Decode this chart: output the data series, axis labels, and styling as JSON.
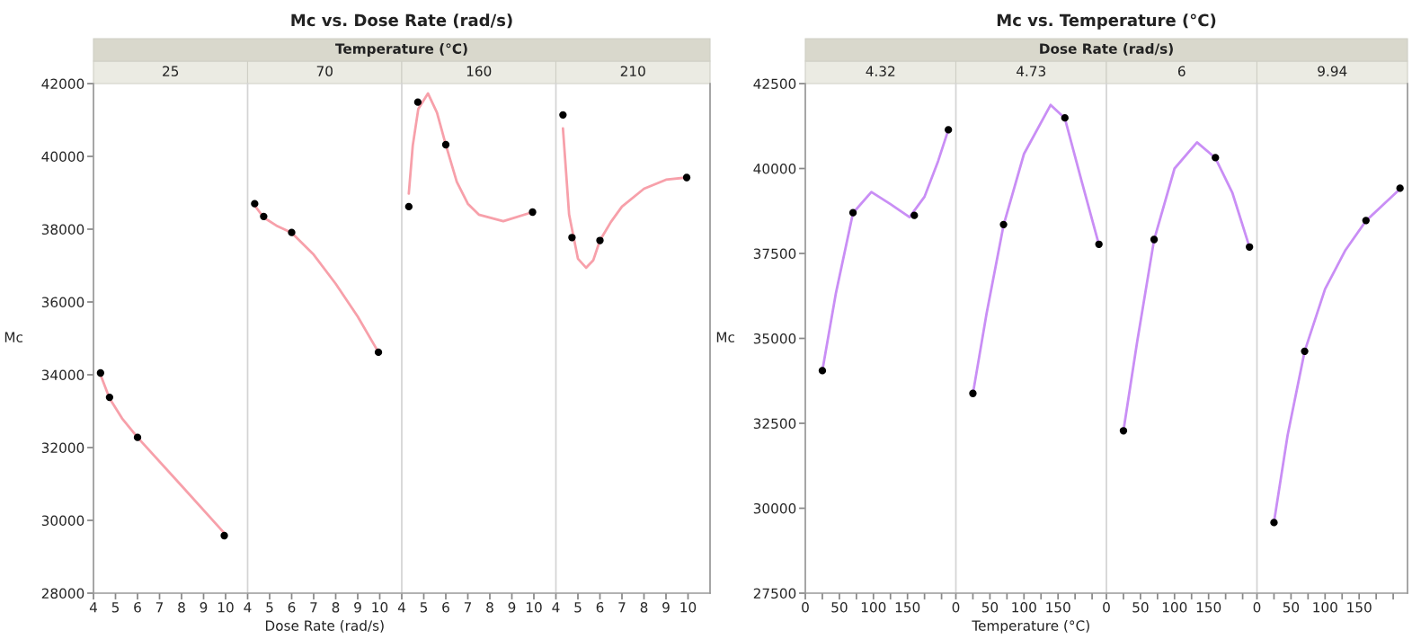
{
  "chart_data": [
    {
      "type": "scatter",
      "title": "25",
      "annotations": [
        "Mc vs. Dose Rate (rad/s)",
        "Temperature (°C)"
      ],
      "ylabel": "Mc",
      "x": [
        4.32,
        4.73,
        6,
        9.94
      ],
      "xlim": [
        4,
        11
      ],
      "xticks": [
        4,
        5,
        6,
        7,
        8,
        9,
        10
      ],
      "ylim": [
        28000,
        42000
      ],
      "yticks": [
        28000,
        30000,
        32000,
        34000,
        36000,
        38000,
        40000,
        42000
      ],
      "grid": false,
      "series": [
        {
          "type": "line",
          "color": "#f7a0aa",
          "x": [
            4.32,
            4.73,
            5.3,
            6,
            8,
            9.94
          ],
          "values": [
            34000,
            33350,
            32800,
            32280,
            30950,
            29650
          ]
        },
        {
          "color": "#000000",
          "values": [
            34050,
            33380,
            32280,
            29580
          ]
        }
      ]
    },
    {
      "type": "scatter",
      "title": "70",
      "xlabel": "Dose Rate (rad/s)",
      "x": [
        4.32,
        4.73,
        6,
        9.94
      ],
      "xlim": [
        4,
        11
      ],
      "xticks": [
        4,
        5,
        6,
        7,
        8,
        9,
        10
      ],
      "ylim": [
        28000,
        42000
      ],
      "yticks": [
        28000,
        30000,
        32000,
        34000,
        36000,
        38000,
        40000,
        42000
      ],
      "tick_labels": "x",
      "grid": false,
      "series": [
        {
          "type": "line",
          "color": "#f7a0aa",
          "x": [
            4.32,
            4.73,
            5.3,
            6,
            7,
            8,
            9,
            9.94
          ],
          "values": [
            38650,
            38320,
            38100,
            37900,
            37300,
            36500,
            35600,
            34620
          ]
        },
        {
          "color": "#000000",
          "values": [
            38700,
            38350,
            37910,
            34620
          ]
        }
      ]
    },
    {
      "type": "scatter",
      "title": "160",
      "x": [
        4.32,
        4.73,
        6,
        9.94
      ],
      "xlim": [
        4,
        11
      ],
      "xticks": [
        4,
        5,
        6,
        7,
        8,
        9,
        10
      ],
      "ylim": [
        28000,
        42000
      ],
      "yticks": [
        28000,
        30000,
        32000,
        34000,
        36000,
        38000,
        40000,
        42000
      ],
      "tick_labels": "x",
      "grid": false,
      "series": [
        {
          "type": "line",
          "color": "#f7a0aa",
          "x": [
            4.32,
            4.5,
            4.75,
            5.19,
            5.6,
            6,
            6.5,
            7,
            7.5,
            8.61,
            9.94
          ],
          "values": [
            38980,
            40300,
            41300,
            41730,
            41200,
            40320,
            39300,
            38700,
            38400,
            38220,
            38470
          ]
        },
        {
          "color": "#000000",
          "values": [
            38620,
            41490,
            40320,
            38470
          ]
        }
      ]
    },
    {
      "type": "scatter",
      "title": "210",
      "x": [
        4.32,
        4.73,
        6,
        9.94
      ],
      "xlim": [
        4,
        11
      ],
      "xticks": [
        4,
        5,
        6,
        7,
        8,
        9,
        10
      ],
      "ylim": [
        28000,
        42000
      ],
      "yticks": [
        28000,
        30000,
        32000,
        34000,
        36000,
        38000,
        40000,
        42000
      ],
      "tick_labels": "x",
      "grid": false,
      "series": [
        {
          "type": "line",
          "color": "#f7a0aa",
          "x": [
            4.32,
            4.6,
            5.0,
            5.37,
            5.7,
            6,
            6.5,
            7,
            8,
            9,
            9.94
          ],
          "values": [
            40770,
            38400,
            37190,
            36940,
            37150,
            37690,
            38200,
            38620,
            39110,
            39360,
            39420
          ]
        },
        {
          "color": "#000000",
          "values": [
            41140,
            37770,
            37690,
            39420
          ]
        }
      ]
    },
    {
      "type": "scatter",
      "title": "4.32",
      "annotations": [
        "Mc vs. Temperature (°C)",
        "Dose Rate (rad/s)"
      ],
      "ylabel": "Mc",
      "x": [
        25,
        70,
        160,
        210
      ],
      "xlim": [
        0,
        221
      ],
      "xticks": [
        0,
        {
          "value": 25,
          "label": null
        },
        50,
        {
          "value": 75,
          "label": null
        },
        100,
        {
          "value": 125,
          "label": null
        },
        150,
        {
          "value": 175,
          "label": null
        },
        {
          "value": 200,
          "label": null
        }
      ],
      "ylim": [
        27500,
        42500
      ],
      "yticks": [
        27500,
        30000,
        32500,
        35000,
        37500,
        40000,
        42500
      ],
      "grid": false,
      "series": [
        {
          "type": "line",
          "color": "#c98ef5",
          "x": [
            25,
            45,
            70,
            97,
            125,
            153,
            175,
            195,
            210
          ],
          "values": [
            34050,
            36340,
            38690,
            39310,
            38950,
            38570,
            39170,
            40220,
            41140
          ]
        },
        {
          "color": "#000000",
          "values": [
            34050,
            38700,
            38620,
            41140
          ]
        }
      ]
    },
    {
      "type": "scatter",
      "title": "4.73",
      "xlabel": "Temperature (°C)",
      "x": [
        25,
        70,
        160,
        210
      ],
      "xlim": [
        0,
        221
      ],
      "xticks": [
        0,
        {
          "value": 25,
          "label": null
        },
        50,
        {
          "value": 75,
          "label": null
        },
        100,
        {
          "value": 125,
          "label": null
        },
        150,
        {
          "value": 175,
          "label": null
        },
        {
          "value": 200,
          "label": null
        }
      ],
      "ylim": [
        27500,
        42500
      ],
      "yticks": [
        27500,
        30000,
        32500,
        35000,
        37500,
        40000,
        42500
      ],
      "tick_labels": "x",
      "grid": false,
      "series": [
        {
          "type": "line",
          "color": "#c98ef5",
          "x": [
            25,
            45,
            70,
            100,
            139,
            160,
            185,
            210
          ],
          "values": [
            33370,
            35720,
            38330,
            40430,
            41870,
            41480,
            39600,
            37760
          ]
        },
        {
          "color": "#000000",
          "values": [
            33380,
            38350,
            41490,
            37770
          ]
        }
      ]
    },
    {
      "type": "scatter",
      "title": "6",
      "x": [
        25,
        70,
        160,
        210
      ],
      "xlim": [
        0,
        221
      ],
      "xticks": [
        0,
        {
          "value": 25,
          "label": null
        },
        50,
        {
          "value": 75,
          "label": null
        },
        100,
        {
          "value": 125,
          "label": null
        },
        150,
        {
          "value": 175,
          "label": null
        },
        {
          "value": 200,
          "label": null
        }
      ],
      "ylim": [
        27500,
        42500
      ],
      "yticks": [
        27500,
        30000,
        32500,
        35000,
        37500,
        40000,
        42500
      ],
      "tick_labels": "x",
      "grid": false,
      "series": [
        {
          "type": "line",
          "color": "#c98ef5",
          "x": [
            25,
            45,
            70,
            100,
            133,
            160,
            185,
            210
          ],
          "values": [
            32280,
            34880,
            37900,
            40000,
            40770,
            40310,
            39280,
            37690
          ]
        },
        {
          "color": "#000000",
          "values": [
            32280,
            37910,
            40320,
            37690
          ]
        }
      ]
    },
    {
      "type": "scatter",
      "title": "9.94",
      "x": [
        25,
        70,
        160,
        210
      ],
      "xlim": [
        0,
        221
      ],
      "xticks": [
        0,
        {
          "value": 25,
          "label": null
        },
        50,
        {
          "value": 75,
          "label": null
        },
        100,
        {
          "value": 125,
          "label": null
        },
        150,
        {
          "value": 175,
          "label": null
        },
        {
          "value": 200,
          "label": null
        }
      ],
      "ylim": [
        27500,
        42500
      ],
      "yticks": [
        27500,
        30000,
        32500,
        35000,
        37500,
        40000,
        42500
      ],
      "tick_labels": "x",
      "grid": false,
      "series": [
        {
          "type": "line",
          "color": "#c98ef5",
          "x": [
            25,
            45,
            70,
            100,
            130,
            160,
            185,
            210
          ],
          "values": [
            29590,
            32150,
            34620,
            36450,
            37600,
            38460,
            38930,
            39400
          ]
        },
        {
          "color": "#000000",
          "values": [
            29580,
            34620,
            38470,
            39420
          ]
        }
      ]
    }
  ]
}
